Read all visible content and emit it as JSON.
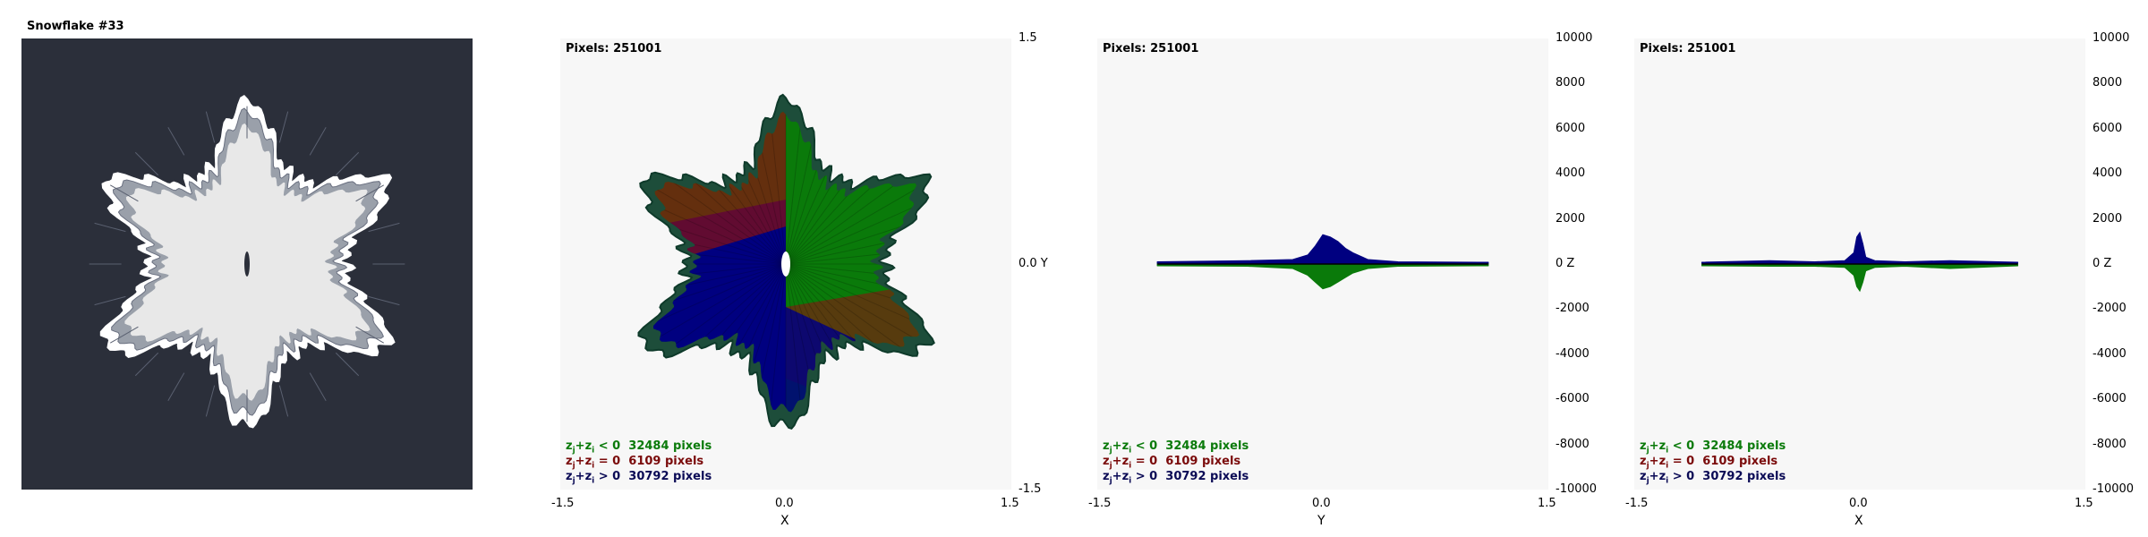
{
  "title": "Snowflake #33",
  "colors": {
    "background_dark": "#2b2f3a",
    "plot_bg": "#f7f7f7",
    "green": "#0a7a0a",
    "red": "#8a1010",
    "navy": "#000080",
    "snow": "#e8e8e8"
  },
  "pixels_label": "Pixels: 251001",
  "legend": [
    {
      "prefix": "z",
      "sub1": "j",
      "mid": "+z",
      "sub2": "i",
      "cond": " < 0",
      "count": "32484 pixels",
      "color": "green"
    },
    {
      "prefix": "z",
      "sub1": "j",
      "mid": "+z",
      "sub2": "i",
      "cond": " = 0",
      "count": "6109 pixels",
      "color": "red"
    },
    {
      "prefix": "z",
      "sub1": "j",
      "mid": "+z",
      "sub2": "i",
      "cond": " > 0",
      "count": "30792 pixels",
      "color": "navy"
    }
  ],
  "chart_data": [
    {
      "type": "scatter",
      "panel": "xy-projection",
      "xlabel": "X",
      "ylabel": "Y",
      "xlim": [
        -1.5,
        1.5
      ],
      "ylim": [
        -1.5,
        1.5
      ],
      "x_ticks": [
        "-1.5",
        "0.0",
        "1.5"
      ],
      "y_ticks": [
        "1.5",
        "0.0",
        "-1.5"
      ],
      "y_mid_label": "0.0  Y"
    },
    {
      "type": "area",
      "panel": "z-vs-y",
      "xlabel": "Y",
      "ylabel": "Z",
      "xlim": [
        -1.5,
        1.5
      ],
      "ylim": [
        -10000,
        10000
      ],
      "x_ticks": [
        "-1.5",
        "0.0",
        "1.5"
      ],
      "y_ticks": [
        "10000",
        "8000",
        "6000",
        "4000",
        "2000",
        "0",
        "-2000",
        "-4000",
        "-6000",
        "-8000",
        "-10000"
      ],
      "y_mid_label": "0   Z",
      "series": [
        {
          "name": "z > 0",
          "color": "navy",
          "x": [
            -1.1,
            -0.5,
            -0.2,
            -0.1,
            -0.05,
            0.0,
            0.05,
            0.1,
            0.15,
            0.2,
            0.3,
            0.5,
            1.1
          ],
          "values": [
            100,
            150,
            200,
            400,
            800,
            1300,
            1200,
            1000,
            700,
            500,
            200,
            100,
            80
          ]
        },
        {
          "name": "z < 0",
          "color": "green",
          "x": [
            -1.1,
            -0.5,
            -0.2,
            -0.1,
            -0.05,
            0.0,
            0.05,
            0.1,
            0.15,
            0.2,
            0.3,
            0.5,
            1.1
          ],
          "values": [
            -80,
            -100,
            -200,
            -500,
            -800,
            -1100,
            -1000,
            -800,
            -600,
            -400,
            -200,
            -100,
            -80
          ]
        }
      ]
    },
    {
      "type": "area",
      "panel": "z-vs-x",
      "xlabel": "X",
      "ylabel": "Z",
      "xlim": [
        -1.5,
        1.5
      ],
      "ylim": [
        -10000,
        10000
      ],
      "x_ticks": [
        "-1.5",
        "0.0",
        "1.5"
      ],
      "y_ticks": [
        "10000",
        "8000",
        "6000",
        "4000",
        "2000",
        "0",
        "-2000",
        "-4000",
        "-6000",
        "-8000",
        "-10000"
      ],
      "y_mid_label": "0   Z",
      "series": [
        {
          "name": "z > 0",
          "color": "navy",
          "x": [
            -1.05,
            -0.6,
            -0.3,
            -0.1,
            -0.04,
            -0.02,
            0.0,
            0.02,
            0.04,
            0.1,
            0.3,
            0.6,
            1.05
          ],
          "values": [
            80,
            150,
            100,
            150,
            500,
            1200,
            1400,
            900,
            300,
            150,
            100,
            150,
            80
          ]
        },
        {
          "name": "z < 0",
          "color": "green",
          "x": [
            -1.05,
            -0.6,
            -0.3,
            -0.1,
            -0.04,
            -0.02,
            0.0,
            0.02,
            0.04,
            0.1,
            0.3,
            0.6,
            1.05
          ],
          "values": [
            -80,
            -100,
            -100,
            -150,
            -500,
            -1000,
            -1200,
            -800,
            -300,
            -150,
            -100,
            -200,
            -80
          ]
        }
      ]
    }
  ]
}
